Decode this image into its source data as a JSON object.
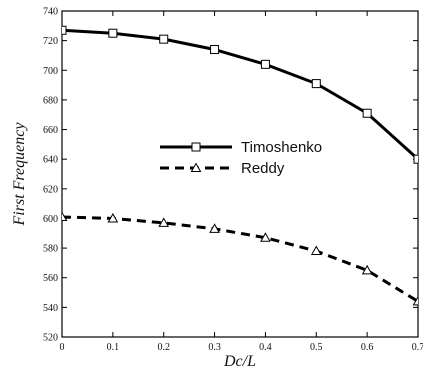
{
  "chart_data": {
    "type": "line",
    "title": "",
    "xlabel": "Dc/L",
    "ylabel": "First Frequency",
    "xlim": [
      0,
      0.7
    ],
    "ylim": [
      520,
      740
    ],
    "xticks": [
      0,
      0.1,
      0.2,
      0.3,
      0.4,
      0.5,
      0.6,
      0.7
    ],
    "xtick_labels": [
      "0",
      "0.1",
      "0.2",
      "0.3",
      "0.4",
      "0.5",
      "0.6",
      "0.7"
    ],
    "yticks": [
      520,
      540,
      560,
      580,
      600,
      620,
      640,
      660,
      680,
      700,
      720,
      740
    ],
    "ytick_labels": [
      "520",
      "540",
      "560",
      "580",
      "600",
      "620",
      "640",
      "660",
      "680",
      "700",
      "720",
      "740"
    ],
    "grid": false,
    "legend_position": "center-right",
    "series": [
      {
        "name": "Timoshenko",
        "line_style": "solid",
        "marker": "square",
        "color": "#000000",
        "x": [
          0,
          0.1,
          0.2,
          0.3,
          0.4,
          0.5,
          0.6,
          0.7
        ],
        "y": [
          727,
          725,
          721,
          714,
          704,
          691,
          671,
          640
        ]
      },
      {
        "name": "Reddy",
        "line_style": "dashed",
        "marker": "triangle",
        "color": "#000000",
        "x": [
          0,
          0.1,
          0.2,
          0.3,
          0.4,
          0.5,
          0.6,
          0.7
        ],
        "y": [
          601,
          600,
          597,
          593,
          587,
          578,
          565,
          544
        ]
      }
    ]
  }
}
